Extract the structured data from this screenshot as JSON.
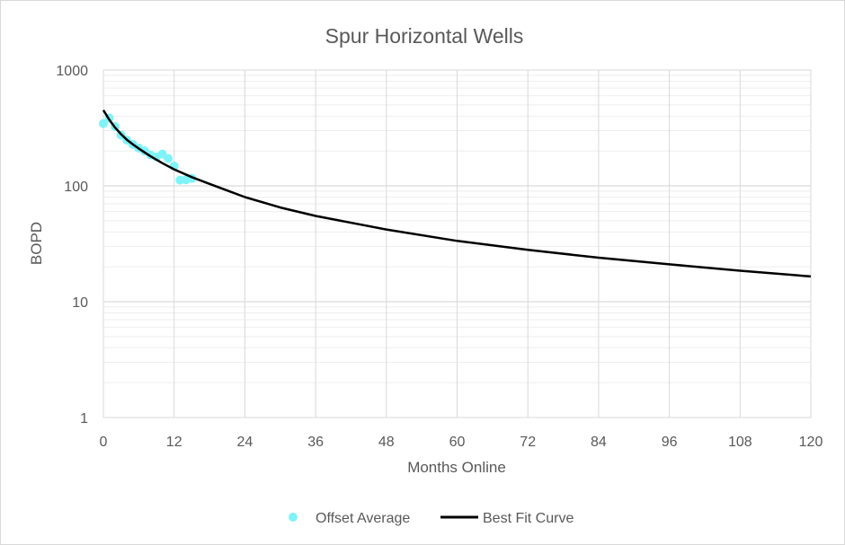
{
  "chart_data": {
    "type": "scatter",
    "title": "Spur Horizontal Wells",
    "xlabel": "Months Online",
    "ylabel": "BOPD",
    "xlim": [
      0,
      120
    ],
    "ylim": [
      1,
      1000
    ],
    "yscale": "log",
    "grid": true,
    "legend_position": "bottom",
    "x_ticks": [
      "0",
      "12",
      "24",
      "36",
      "48",
      "60",
      "72",
      "84",
      "96",
      "108",
      "120"
    ],
    "y_ticks": [
      "1",
      "10",
      "100",
      "1000"
    ],
    "series": [
      {
        "name": "Offset Average",
        "type": "scatter",
        "color": "#7ff3f7",
        "x": [
          0,
          1,
          2,
          3,
          4,
          5,
          6,
          7,
          8,
          9,
          10,
          11,
          12,
          13,
          14,
          15
        ],
        "y": [
          345,
          385,
          325,
          275,
          248,
          228,
          212,
          200,
          185,
          178,
          188,
          172,
          148,
          112,
          113,
          116
        ]
      },
      {
        "name": "Best Fit Curve",
        "type": "line",
        "color": "#000000",
        "x": [
          0,
          1,
          2,
          3,
          4,
          5,
          6,
          8,
          10,
          12,
          15,
          18,
          24,
          30,
          36,
          48,
          60,
          72,
          84,
          96,
          108,
          120
        ],
        "y": [
          450,
          372,
          318,
          279,
          250,
          228,
          210,
          180,
          157,
          139,
          119,
          104,
          80,
          65,
          55,
          42,
          33.5,
          28,
          24,
          21,
          18.5,
          16.5
        ]
      }
    ]
  }
}
